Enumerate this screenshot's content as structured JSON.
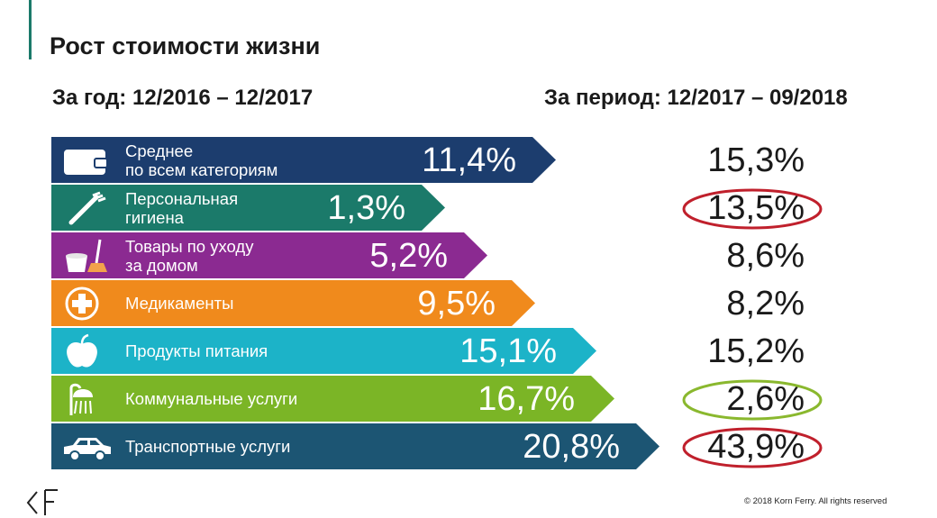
{
  "slide": {
    "title": "Рост стоимости жизни",
    "subtitle_left": "За год: 12/2016 – 12/2017",
    "subtitle_right": "За период: 12/2017 – 09/2018",
    "copyright": "© 2018 Korn Ferry. All rights reserved"
  },
  "chart_data": {
    "type": "bar",
    "orientation": "horizontal",
    "categories": [
      "Среднее\nпо всем категориям",
      "Персональная\nгигиена",
      "Товары по уходу\nза домом",
      "Медикаменты",
      "Продукты питания",
      "Коммунальные услуги",
      "Транспортные услуги"
    ],
    "series": [
      {
        "name": "За год: 12/2016 – 12/2017",
        "values": [
          11.4,
          1.3,
          5.2,
          9.5,
          15.1,
          16.7,
          20.8
        ],
        "labels": [
          "11,4%",
          "1,3%",
          "5,2%",
          "9,5%",
          "15,1%",
          "16,7%",
          "20,8%"
        ]
      },
      {
        "name": "За период: 12/2017 – 09/2018",
        "values": [
          15.3,
          13.5,
          8.6,
          8.2,
          15.2,
          2.6,
          43.9
        ],
        "labels": [
          "15,3%",
          "13,5%",
          "8,6%",
          "8,2%",
          "15,2%",
          "2,6%",
          "43,9%"
        ],
        "circled": [
          false,
          true,
          false,
          false,
          false,
          true,
          true
        ],
        "circle_colors": [
          "",
          "#c0202c",
          "",
          "",
          "",
          "#8ab82e",
          "#c0202c"
        ]
      }
    ],
    "bar_colors": [
      "#1c3d6e",
      "#1b7a6a",
      "#8b2a91",
      "#f08a1c",
      "#1cb3c8",
      "#7bb526",
      "#1c5573"
    ],
    "icons": [
      "wallet-icon",
      "toothbrush-icon",
      "bucket-mop-icon",
      "medical-cross-icon",
      "apple-icon",
      "shower-icon",
      "car-icon"
    ]
  }
}
